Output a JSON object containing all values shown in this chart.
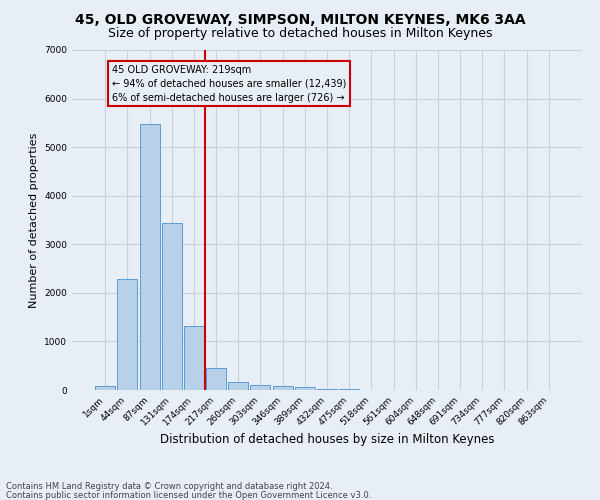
{
  "title": "45, OLD GROVEWAY, SIMPSON, MILTON KEYNES, MK6 3AA",
  "subtitle": "Size of property relative to detached houses in Milton Keynes",
  "xlabel": "Distribution of detached houses by size in Milton Keynes",
  "ylabel": "Number of detached properties",
  "bar_labels": [
    "1sqm",
    "44sqm",
    "87sqm",
    "131sqm",
    "174sqm",
    "217sqm",
    "260sqm",
    "303sqm",
    "346sqm",
    "389sqm",
    "432sqm",
    "475sqm",
    "518sqm",
    "561sqm",
    "604sqm",
    "648sqm",
    "691sqm",
    "734sqm",
    "777sqm",
    "820sqm",
    "863sqm"
  ],
  "bar_values": [
    80,
    2280,
    5480,
    3430,
    1310,
    460,
    155,
    100,
    75,
    55,
    30,
    15,
    8,
    4,
    2,
    1,
    1,
    0,
    0,
    0,
    0
  ],
  "bar_color": "#b8d0e8",
  "bar_edgecolor": "#5b9bd5",
  "grid_color": "#c8d0dc",
  "bg_color": "#e8eef6",
  "vline_index": 5,
  "vline_color": "#cc0000",
  "annotation_lines": [
    "45 OLD GROVEWAY: 219sqm",
    "← 94% of detached houses are smaller (12,439)",
    "6% of semi-detached houses are larger (726) →"
  ],
  "annotation_box_edgecolor": "#cc0000",
  "ylim": [
    0,
    7000
  ],
  "yticks": [
    0,
    1000,
    2000,
    3000,
    4000,
    5000,
    6000,
    7000
  ],
  "footnote1": "Contains HM Land Registry data © Crown copyright and database right 2024.",
  "footnote2": "Contains public sector information licensed under the Open Government Licence v3.0.",
  "title_fontsize": 10,
  "subtitle_fontsize": 9,
  "ylabel_fontsize": 8,
  "xlabel_fontsize": 8.5,
  "tick_fontsize": 6.5,
  "footnote_fontsize": 6
}
